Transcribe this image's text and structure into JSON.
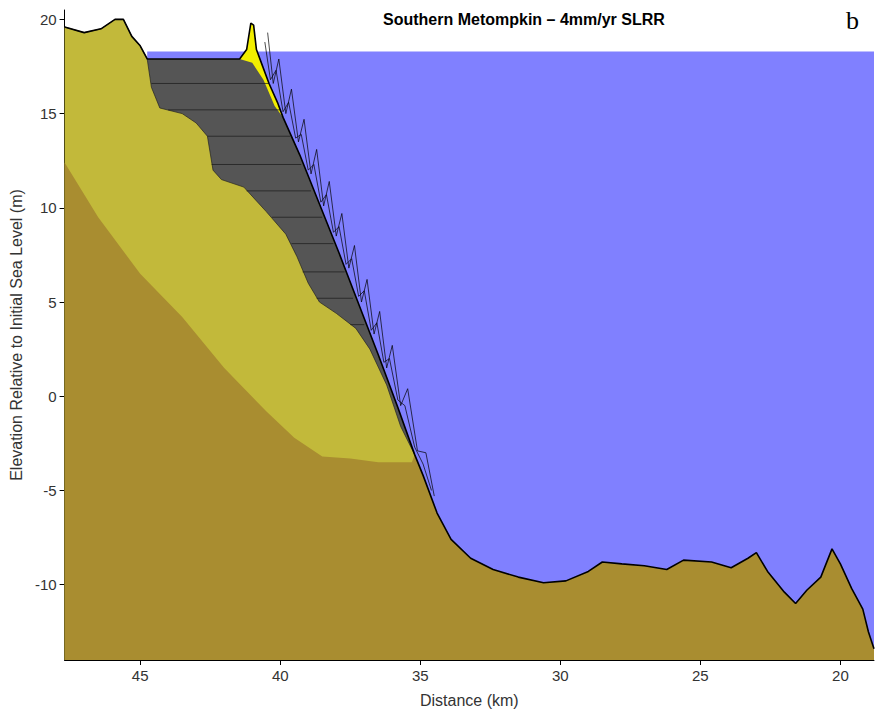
{
  "chart_data": {
    "type": "area",
    "title": "Southern Metompkin – 4mm/yr SLRR",
    "panel_label": "b",
    "x_label": "Distance (km)",
    "y_label": "Elevation Relative to Initial Sea Level (m)",
    "xlim": [
      47.7,
      18.8
    ],
    "xticks": [
      45,
      40,
      35,
      30,
      25,
      20
    ],
    "ylim": [
      -14,
      20.5
    ],
    "yticks": [
      -10,
      -5,
      0,
      5,
      10,
      15,
      20
    ],
    "grid": false,
    "series": [
      {
        "type": "area",
        "color": "#8080ff",
        "line_style": "none",
        "x": [
          44.75,
          18.8
        ],
        "values": [
          18.3,
          18.3
        ]
      },
      {
        "type": "area",
        "color": "#f2ee00",
        "line_style": "none",
        "x": [
          41.45,
          41.2,
          41.05,
          40.95,
          40.85,
          40.7,
          40.4,
          40.1,
          39.9
        ],
        "values": [
          17.9,
          18.4,
          19.8,
          19.7,
          18.4,
          17.8,
          16.6,
          15.6,
          14.8
        ]
      },
      {
        "type": "area",
        "color": "#555555",
        "line_style": "none",
        "x": [
          44.75,
          41.45,
          41.0,
          40.6,
          40.2,
          39.9,
          39.3,
          38.6,
          37.9,
          37.2,
          36.5,
          35.8,
          35.2
        ],
        "values": [
          17.9,
          17.9,
          17.7,
          16.8,
          15.4,
          14.8,
          12.8,
          10.2,
          7.6,
          4.9,
          2.2,
          -0.6,
          -3.1
        ]
      },
      {
        "type": "area",
        "color": "#c2b93a",
        "line_style": "thin",
        "x": [
          47.7,
          47.0,
          46.4,
          45.9,
          45.6,
          45.3,
          45.0,
          44.75,
          44.6,
          44.3,
          43.5,
          43.0,
          42.6,
          42.4,
          42.1,
          41.3,
          40.5,
          39.8,
          39.4,
          39.0,
          38.6,
          38.0,
          37.3,
          36.8,
          36.2,
          35.7,
          35.2
        ],
        "values": [
          19.6,
          19.3,
          19.5,
          20.0,
          20.0,
          19.1,
          18.6,
          17.9,
          16.4,
          15.3,
          15.0,
          14.5,
          13.8,
          12.0,
          11.5,
          11.1,
          9.8,
          8.6,
          7.4,
          6.0,
          5.0,
          4.4,
          3.6,
          2.5,
          0.6,
          -1.6,
          -3.1
        ]
      },
      {
        "type": "area",
        "color": "#a98d30",
        "line_style": "none",
        "x": [
          47.7,
          46.5,
          45.0,
          43.5,
          42.0,
          40.5,
          39.5,
          38.5,
          37.5,
          36.5,
          35.3,
          35.2,
          34.9,
          34.4,
          33.9,
          33.2,
          32.4,
          31.5,
          30.6,
          29.8,
          29.0,
          28.5,
          27.8,
          27.0,
          26.2,
          25.6,
          24.6,
          23.9,
          23.3,
          23.0,
          22.6,
          22.0,
          21.6,
          21.2,
          20.7,
          20.3,
          20.0,
          19.6,
          19.2,
          19.0,
          18.8
        ],
        "values": [
          12.4,
          9.5,
          6.5,
          4.2,
          1.5,
          -0.8,
          -2.2,
          -3.2,
          -3.3,
          -3.5,
          -3.5,
          -3.1,
          -4.2,
          -6.2,
          -7.6,
          -8.6,
          -9.2,
          -9.6,
          -9.9,
          -9.8,
          -9.3,
          -8.8,
          -8.9,
          -9.0,
          -9.2,
          -8.7,
          -8.8,
          -9.1,
          -8.6,
          -8.3,
          -9.3,
          -10.4,
          -11.0,
          -10.3,
          -9.6,
          -8.1,
          -8.9,
          -10.2,
          -11.3,
          -12.5,
          -13.4
        ]
      },
      {
        "type": "line",
        "color": "#1a1a1a",
        "line_style": "thin",
        "x": [
          44.6,
          40.4
        ],
        "values": [
          16.6,
          16.6
        ]
      },
      {
        "type": "line",
        "color": "#1a1a1a",
        "line_style": "thin",
        "x": [
          44.0,
          40.0
        ],
        "values": [
          15.2,
          15.2
        ]
      },
      {
        "type": "line",
        "color": "#1a1a1a",
        "line_style": "thin",
        "x": [
          42.6,
          39.65
        ],
        "values": [
          13.8,
          13.8
        ]
      },
      {
        "type": "line",
        "color": "#1a1a1a",
        "line_style": "thin",
        "x": [
          42.45,
          39.25
        ],
        "values": [
          12.3,
          12.3
        ]
      },
      {
        "type": "line",
        "color": "#1a1a1a",
        "line_style": "thin",
        "x": [
          41.2,
          38.9
        ],
        "values": [
          10.9,
          10.9
        ]
      },
      {
        "type": "line",
        "color": "#1a1a1a",
        "line_style": "thin",
        "x": [
          40.3,
          38.5
        ],
        "values": [
          9.5,
          9.5
        ]
      },
      {
        "type": "line",
        "color": "#1a1a1a",
        "line_style": "thin",
        "x": [
          39.6,
          38.1
        ],
        "values": [
          8.1,
          8.1
        ]
      },
      {
        "type": "line",
        "color": "#1a1a1a",
        "line_style": "thin",
        "x": [
          39.2,
          37.7
        ],
        "values": [
          6.6,
          6.6
        ]
      },
      {
        "type": "line",
        "color": "#1a1a1a",
        "line_style": "thin",
        "x": [
          38.7,
          37.4
        ],
        "values": [
          5.2,
          5.2
        ]
      },
      {
        "type": "line",
        "color": "#1a1a1a",
        "line_style": "thin",
        "x": [
          37.5,
          37.0
        ],
        "values": [
          3.8,
          3.8
        ]
      },
      {
        "type": "line",
        "color": "#000000",
        "line_style": "thin",
        "x": [
          40.55,
          40.35,
          40.15,
          39.9,
          39.7,
          39.45,
          39.25,
          39.0,
          38.8,
          38.55,
          38.35,
          38.1,
          37.9,
          37.65,
          37.45,
          37.2,
          37.0,
          36.75,
          36.55,
          36.3,
          36.1,
          35.8,
          35.55,
          35.2,
          34.9,
          34.6
        ],
        "values": [
          18.8,
          16.8,
          17.3,
          15.1,
          15.6,
          13.7,
          13.9,
          12.0,
          12.3,
          10.3,
          10.7,
          8.7,
          9.0,
          7.0,
          7.3,
          5.3,
          5.6,
          3.5,
          3.9,
          1.8,
          2.0,
          -0.2,
          -0.5,
          -2.7,
          -3.6,
          -5.0
        ]
      },
      {
        "type": "line",
        "color": "#000000",
        "line_style": "thin",
        "x": [
          40.45,
          40.25,
          40.05,
          39.8,
          39.6,
          39.35,
          39.15,
          38.9,
          38.7,
          38.45,
          38.25,
          38.0,
          37.8,
          37.55,
          37.35,
          37.1,
          36.9,
          36.65,
          36.45,
          36.2,
          36.0,
          35.7,
          35.45,
          35.1,
          34.8,
          34.5
        ],
        "values": [
          19.3,
          16.6,
          17.9,
          15.0,
          16.3,
          13.5,
          14.7,
          11.8,
          13.1,
          10.1,
          11.4,
          8.5,
          9.7,
          6.8,
          8.0,
          5.0,
          6.2,
          3.3,
          4.5,
          1.5,
          2.7,
          -0.5,
          0.4,
          -2.9,
          -3.0,
          -5.3
        ]
      },
      {
        "type": "line",
        "color": "#000000",
        "line_style": "thick",
        "x": [
          47.7,
          47.0,
          46.4,
          45.9,
          45.6,
          45.3,
          45.0,
          44.75,
          41.45,
          41.2,
          41.05,
          40.95,
          40.85,
          40.7,
          40.4,
          40.1,
          39.9,
          39.3,
          38.6,
          37.9,
          37.2,
          36.5,
          35.8,
          35.2,
          34.9,
          34.4,
          33.9,
          33.2,
          32.4,
          31.5,
          30.6,
          29.8,
          29.0,
          28.5,
          27.8,
          27.0,
          26.2,
          25.6,
          24.6,
          23.9,
          23.3,
          23.0,
          22.6,
          22.0,
          21.6,
          21.2,
          20.7,
          20.3,
          20.0,
          19.6,
          19.2,
          19.0,
          18.8
        ],
        "values": [
          19.6,
          19.3,
          19.5,
          20.0,
          20.0,
          19.1,
          18.6,
          17.9,
          17.9,
          18.4,
          19.8,
          19.7,
          18.4,
          17.8,
          16.6,
          15.6,
          14.8,
          12.8,
          10.2,
          7.6,
          4.9,
          2.2,
          -0.6,
          -3.1,
          -4.2,
          -6.2,
          -7.6,
          -8.6,
          -9.2,
          -9.6,
          -9.9,
          -9.8,
          -9.3,
          -8.8,
          -8.9,
          -9.0,
          -9.2,
          -8.7,
          -8.8,
          -9.1,
          -8.6,
          -8.3,
          -9.3,
          -10.4,
          -11.0,
          -10.3,
          -9.6,
          -8.1,
          -8.9,
          -10.2,
          -11.3,
          -12.5,
          -13.4
        ]
      }
    ]
  }
}
